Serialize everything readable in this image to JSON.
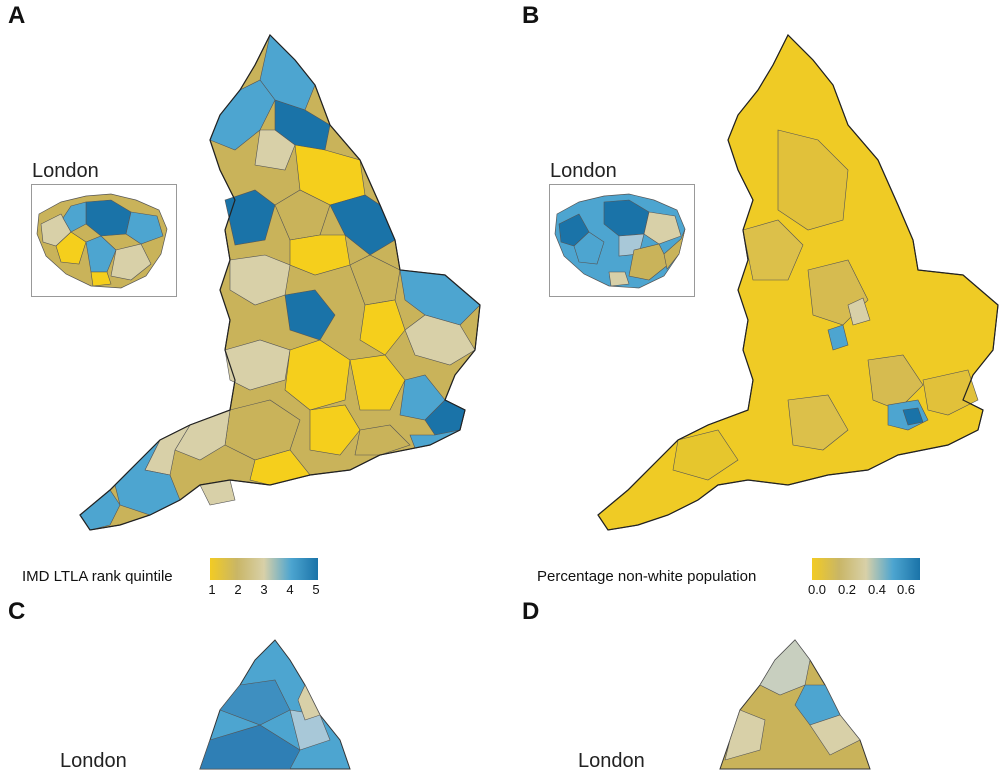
{
  "panels": [
    {
      "letter": "A",
      "inset_label": "London",
      "legend_title": "IMD LTLA rank quintile",
      "ticks": [
        "1",
        "2",
        "3",
        "4",
        "5"
      ],
      "gradient": [
        "#f2cb23",
        "#c9b666",
        "#d8d0a8",
        "#4da5d0",
        "#1a73a8"
      ]
    },
    {
      "letter": "B",
      "inset_label": "London",
      "legend_title": "Percentage non-white population",
      "ticks": [
        "0.0",
        "0.2",
        "0.4",
        "0.6"
      ],
      "gradient": [
        "#f2cb23",
        "#c9b666",
        "#d8d0a8",
        "#4da5d0",
        "#1a73a8"
      ]
    },
    {
      "letter": "C",
      "inset_label": "London"
    },
    {
      "letter": "D",
      "inset_label": "London"
    }
  ],
  "colors": {
    "yellow": "#f5cf1c",
    "mustard": "#c9b35a",
    "beige": "#d8d0a8",
    "lightblue": "#4da5d0",
    "darkblue": "#1a73a8",
    "outline": "#333333"
  }
}
